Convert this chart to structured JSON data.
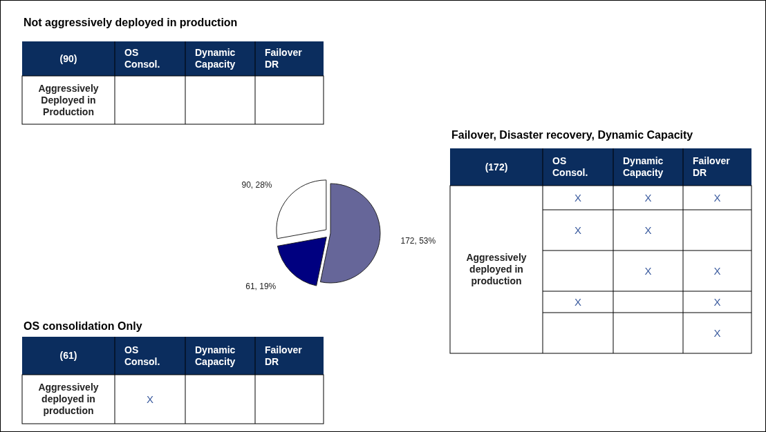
{
  "chart_data": [
    {
      "type": "other",
      "title": "Not aggressively deployed in production",
      "categories": [
        "(90)",
        "OS Consol.",
        "Dynamic Capacity",
        "Failover DR"
      ],
      "y_categories": [
        "Aggressively Deployed in Production"
      ],
      "cell_labels": [
        [
          null,
          null,
          null
        ]
      ]
    },
    {
      "type": "pie",
      "categories": [
        null,
        null,
        null
      ],
      "values": [
        172,
        61,
        90
      ],
      "colors": [
        "#666699",
        "#000080",
        "#ffffff"
      ],
      "value_labels": [
        "172, 53%",
        "61, 19%",
        "90, 28%"
      ]
    },
    {
      "type": "other",
      "title": "Failover, Disaster recovery, Dynamic Capacity",
      "categories": [
        "(172)",
        "OS Consol.",
        "Dynamic Capacity",
        "Failover DR"
      ],
      "y_categories": [
        "Aggressively deployed in production"
      ],
      "cell_labels": [
        [
          "X",
          "X",
          "X"
        ],
        [
          "X",
          "X",
          null
        ],
        [
          null,
          "X",
          "X"
        ],
        [
          "X",
          null,
          "X"
        ],
        [
          null,
          null,
          "X"
        ]
      ]
    },
    {
      "type": "other",
      "title": "OS consolidation Only",
      "categories": [
        "(61)",
        "OS Consol.",
        "Dynamic Capacity",
        "Failover DR"
      ],
      "y_categories": [
        "Aggressively deployed in production"
      ],
      "cell_labels": [
        [
          "X",
          null,
          null
        ]
      ]
    }
  ]
}
